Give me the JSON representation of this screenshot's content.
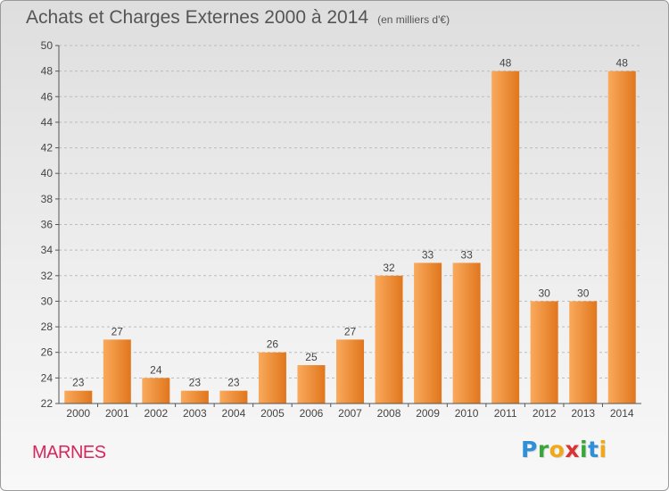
{
  "header": {
    "title": "Achats et Charges Externes 2000 à 2014",
    "unit": "(en milliers d'€)"
  },
  "footer": {
    "commune": "MARNES",
    "logo_letters": [
      "P",
      "r",
      "o",
      "x",
      "i",
      "t",
      "i"
    ],
    "logo_colors": [
      "#2f8fd8",
      "#3aa63a",
      "#f0a818",
      "#d93333",
      "#3aa63a",
      "#2f8fd8",
      "#f0a818"
    ]
  },
  "colors": {
    "bar_light": "#f9aa5c",
    "bar_dark": "#e1761d",
    "grid": "#bcbcbc",
    "axis": "#555555",
    "label": "#444444"
  },
  "chart_data": {
    "type": "bar",
    "title": "Achats et Charges Externes 2000 à 2014",
    "subtitle": "(en milliers d'€)",
    "xlabel": "",
    "ylabel": "",
    "categories": [
      "2000",
      "2001",
      "2002",
      "2003",
      "2004",
      "2005",
      "2006",
      "2007",
      "2008",
      "2009",
      "2010",
      "2011",
      "2012",
      "2013",
      "2014"
    ],
    "values": [
      23,
      27,
      24,
      23,
      23,
      26,
      25,
      27,
      32,
      33,
      33,
      48,
      30,
      30,
      48
    ],
    "ylim": [
      22,
      50
    ],
    "yticks": [
      22,
      24,
      26,
      28,
      30,
      32,
      34,
      36,
      38,
      40,
      42,
      44,
      46,
      48,
      50
    ],
    "grid": true,
    "grid_style": "dashed horizontal",
    "legend": "none",
    "data_labels": true
  }
}
